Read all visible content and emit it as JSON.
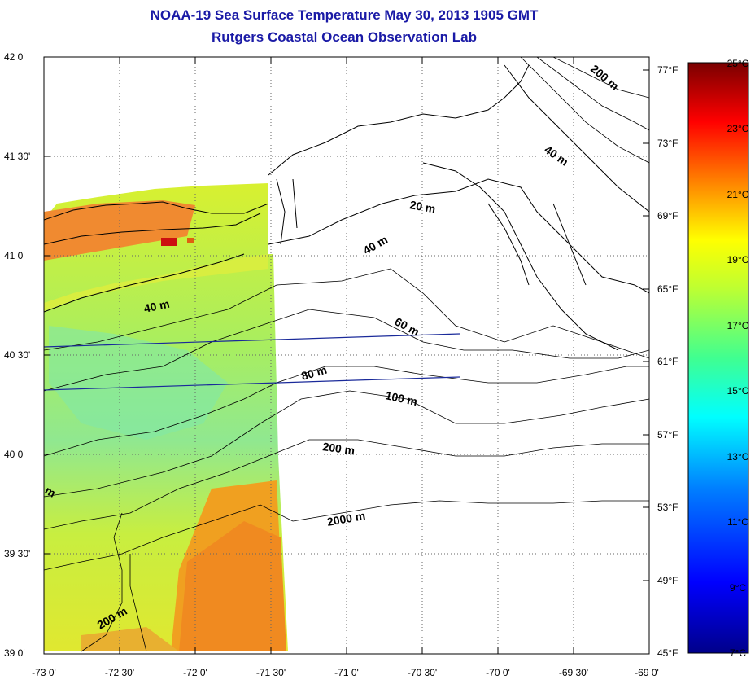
{
  "header": {
    "title": "NOAA-19 Sea Surface Temperature May 30, 2013 1905 GMT",
    "subtitle": "Rutgers Coastal Ocean Observation Lab"
  },
  "map": {
    "lat_labels": [
      "42 0'",
      "41 30'",
      "41 0'",
      "40 30'",
      "40 0'",
      "39 30'",
      "39 0'"
    ],
    "lon_labels": [
      "-73 0'",
      "-72 30'",
      "-72 0'",
      "-71 30'",
      "-71 0'",
      "-70 30'",
      "-70 0'",
      "-69 30'",
      "-69 0'"
    ],
    "lat_range": [
      39.0,
      42.0
    ],
    "lon_range": [
      -73.0,
      -69.0
    ],
    "grid": true,
    "contour_labels": [
      "20 m",
      "40 m",
      "40 m",
      "40 m",
      "60 m",
      "80 m",
      "100 m",
      "200 m",
      "200 m",
      "200 m",
      "2000 m",
      "m"
    ],
    "fahrenheit_ticks": [
      "77°F",
      "73°F",
      "69°F",
      "65°F",
      "61°F",
      "57°F",
      "53°F",
      "49°F",
      "45°F"
    ]
  },
  "colorbar": {
    "labels": [
      "25°C",
      "23°C",
      "21°C",
      "19°C",
      "17°C",
      "15°C",
      "13°C",
      "11°C",
      "9°C",
      "7°C"
    ],
    "min_c": 7,
    "max_c": 25,
    "colors": [
      "#7a0000",
      "#ff0000",
      "#ff7a00",
      "#ffe000",
      "#a8ff50",
      "#00ffe0",
      "#00a0ff",
      "#0030ff",
      "#00008a"
    ]
  }
}
